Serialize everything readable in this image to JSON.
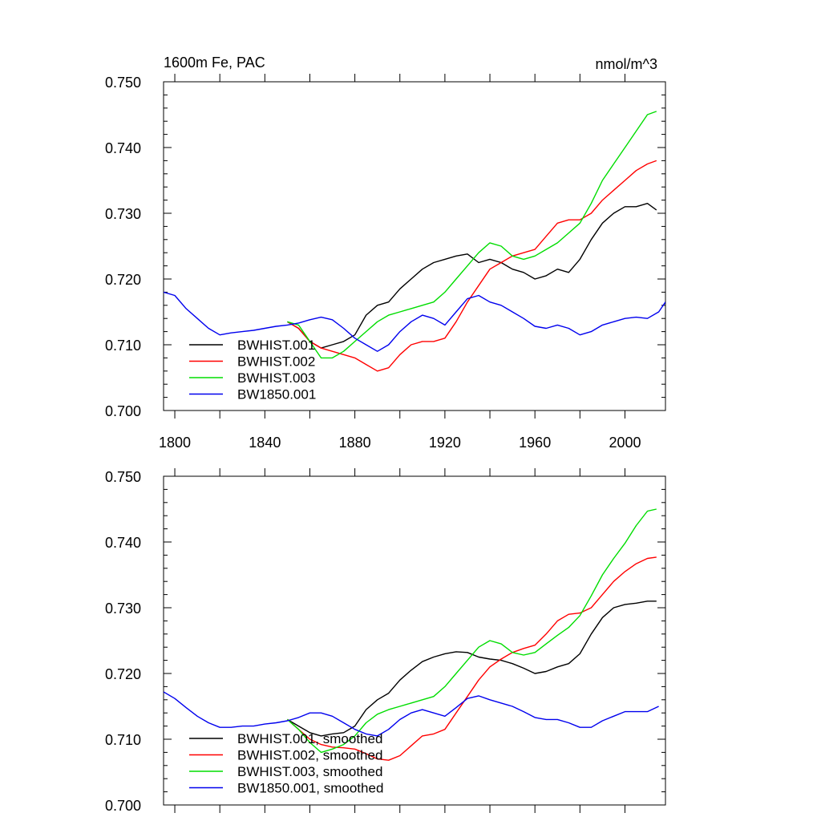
{
  "chart_data": [
    {
      "type": "line",
      "title_left": "1600m Fe, PAC",
      "title_right": "nmol/m^3",
      "ylim": [
        0.7,
        0.75
      ],
      "xlim": [
        1795,
        2018
      ],
      "yticks": [
        "0.700",
        "0.710",
        "0.720",
        "0.730",
        "0.740",
        "0.750"
      ],
      "ytick_values": [
        0.7,
        0.71,
        0.72,
        0.73,
        0.74,
        0.75
      ],
      "xticks": [
        "1800",
        "1840",
        "1880",
        "1920",
        "1960",
        "2000"
      ],
      "xtick_values": [
        1800,
        1840,
        1880,
        1920,
        1960,
        2000
      ],
      "legend_position": "bottom-left",
      "series": [
        {
          "name": "BWHIST.001",
          "color": "#000000",
          "x": [
            1850,
            1855,
            1860,
            1865,
            1870,
            1875,
            1880,
            1885,
            1890,
            1895,
            1900,
            1905,
            1910,
            1915,
            1920,
            1925,
            1930,
            1935,
            1940,
            1945,
            1950,
            1955,
            1960,
            1965,
            1970,
            1975,
            1980,
            1985,
            1990,
            1995,
            2000,
            2005,
            2010,
            2014
          ],
          "y": [
            0.7135,
            0.7125,
            0.7105,
            0.7095,
            0.71,
            0.7105,
            0.7115,
            0.7145,
            0.716,
            0.7165,
            0.7185,
            0.72,
            0.7215,
            0.7225,
            0.723,
            0.7235,
            0.7238,
            0.7225,
            0.723,
            0.7225,
            0.7215,
            0.721,
            0.72,
            0.7205,
            0.7215,
            0.721,
            0.723,
            0.726,
            0.7285,
            0.73,
            0.731,
            0.731,
            0.7315,
            0.7305
          ]
        },
        {
          "name": "BWHIST.002",
          "color": "#ff0000",
          "x": [
            1850,
            1855,
            1860,
            1865,
            1870,
            1875,
            1880,
            1885,
            1890,
            1895,
            1900,
            1905,
            1910,
            1915,
            1920,
            1925,
            1930,
            1935,
            1940,
            1945,
            1950,
            1955,
            1960,
            1965,
            1970,
            1975,
            1980,
            1985,
            1990,
            1995,
            2000,
            2005,
            2010,
            2014
          ],
          "y": [
            0.7135,
            0.7125,
            0.7105,
            0.7095,
            0.709,
            0.7085,
            0.708,
            0.707,
            0.706,
            0.7065,
            0.7085,
            0.71,
            0.7105,
            0.7105,
            0.711,
            0.7135,
            0.7165,
            0.719,
            0.7215,
            0.7225,
            0.7235,
            0.724,
            0.7245,
            0.7265,
            0.7285,
            0.729,
            0.729,
            0.73,
            0.732,
            0.7335,
            0.735,
            0.7365,
            0.7375,
            0.738
          ]
        },
        {
          "name": "BWHIST.003",
          "color": "#00dd00",
          "x": [
            1850,
            1855,
            1860,
            1865,
            1870,
            1875,
            1880,
            1885,
            1890,
            1895,
            1900,
            1905,
            1910,
            1915,
            1920,
            1925,
            1930,
            1935,
            1940,
            1945,
            1950,
            1955,
            1960,
            1965,
            1970,
            1975,
            1980,
            1985,
            1990,
            1995,
            2000,
            2005,
            2010,
            2014
          ],
          "y": [
            0.7135,
            0.713,
            0.7105,
            0.708,
            0.708,
            0.709,
            0.7105,
            0.712,
            0.7135,
            0.7145,
            0.715,
            0.7155,
            0.716,
            0.7165,
            0.718,
            0.72,
            0.722,
            0.724,
            0.7255,
            0.725,
            0.7235,
            0.723,
            0.7235,
            0.7245,
            0.7255,
            0.727,
            0.7285,
            0.7315,
            0.735,
            0.7375,
            0.74,
            0.7425,
            0.745,
            0.7455
          ]
        },
        {
          "name": "BW1850.001",
          "color": "#0000ee",
          "x": [
            1795,
            1800,
            1805,
            1810,
            1815,
            1820,
            1825,
            1830,
            1835,
            1840,
            1845,
            1850,
            1855,
            1860,
            1865,
            1870,
            1875,
            1880,
            1885,
            1890,
            1895,
            1900,
            1905,
            1910,
            1915,
            1920,
            1925,
            1930,
            1935,
            1940,
            1945,
            1950,
            1955,
            1960,
            1965,
            1970,
            1975,
            1980,
            1985,
            1990,
            1995,
            2000,
            2005,
            2010,
            2015,
            2018
          ],
          "y": [
            0.718,
            0.7175,
            0.7155,
            0.714,
            0.7125,
            0.7115,
            0.7118,
            0.712,
            0.7122,
            0.7125,
            0.7128,
            0.713,
            0.7133,
            0.7138,
            0.7142,
            0.7138,
            0.7125,
            0.711,
            0.71,
            0.709,
            0.71,
            0.712,
            0.7135,
            0.7145,
            0.714,
            0.713,
            0.715,
            0.717,
            0.7175,
            0.7165,
            0.716,
            0.715,
            0.714,
            0.7128,
            0.7125,
            0.713,
            0.7125,
            0.7115,
            0.712,
            0.713,
            0.7135,
            0.714,
            0.7142,
            0.714,
            0.715,
            0.7165
          ]
        }
      ]
    },
    {
      "type": "line",
      "ylim": [
        0.7,
        0.75
      ],
      "xlim": [
        1795,
        2018
      ],
      "yticks": [
        "0.700",
        "0.710",
        "0.720",
        "0.730",
        "0.740",
        "0.750"
      ],
      "ytick_values": [
        0.7,
        0.71,
        0.72,
        0.73,
        0.74,
        0.75
      ],
      "legend_position": "bottom-left",
      "series": [
        {
          "name": "BWHIST.001, smoothed",
          "color": "#000000",
          "x": [
            1850,
            1855,
            1860,
            1865,
            1870,
            1875,
            1880,
            1885,
            1890,
            1895,
            1900,
            1905,
            1910,
            1915,
            1920,
            1925,
            1930,
            1935,
            1940,
            1945,
            1950,
            1955,
            1960,
            1965,
            1970,
            1975,
            1980,
            1985,
            1990,
            1995,
            2000,
            2005,
            2010,
            2014
          ],
          "y": [
            0.713,
            0.712,
            0.711,
            0.7105,
            0.7108,
            0.711,
            0.712,
            0.7145,
            0.716,
            0.717,
            0.719,
            0.7205,
            0.7218,
            0.7225,
            0.723,
            0.7233,
            0.7232,
            0.7225,
            0.7222,
            0.722,
            0.7215,
            0.7208,
            0.72,
            0.7203,
            0.721,
            0.7215,
            0.723,
            0.726,
            0.7285,
            0.73,
            0.7305,
            0.7307,
            0.731,
            0.731
          ]
        },
        {
          "name": "BWHIST.002, smoothed",
          "color": "#ff0000",
          "x": [
            1850,
            1855,
            1860,
            1865,
            1870,
            1875,
            1880,
            1885,
            1890,
            1895,
            1900,
            1905,
            1910,
            1915,
            1920,
            1925,
            1930,
            1935,
            1940,
            1945,
            1950,
            1955,
            1960,
            1965,
            1970,
            1975,
            1980,
            1985,
            1990,
            1995,
            2000,
            2005,
            2010,
            2014
          ],
          "y": [
            0.713,
            0.7115,
            0.71,
            0.7092,
            0.7088,
            0.7087,
            0.7085,
            0.7078,
            0.707,
            0.7068,
            0.7075,
            0.709,
            0.7105,
            0.7108,
            0.7115,
            0.714,
            0.7165,
            0.719,
            0.721,
            0.7222,
            0.7232,
            0.7238,
            0.7243,
            0.726,
            0.728,
            0.729,
            0.7292,
            0.73,
            0.732,
            0.734,
            0.7355,
            0.7367,
            0.7375,
            0.7377
          ]
        },
        {
          "name": "BWHIST.003, smoothed",
          "color": "#00dd00",
          "x": [
            1850,
            1855,
            1860,
            1865,
            1870,
            1875,
            1880,
            1885,
            1890,
            1895,
            1900,
            1905,
            1910,
            1915,
            1920,
            1925,
            1930,
            1935,
            1940,
            1945,
            1950,
            1955,
            1960,
            1965,
            1970,
            1975,
            1980,
            1985,
            1990,
            1995,
            2000,
            2005,
            2010,
            2014
          ],
          "y": [
            0.713,
            0.7115,
            0.7095,
            0.708,
            0.7085,
            0.7092,
            0.7105,
            0.7125,
            0.7138,
            0.7145,
            0.715,
            0.7155,
            0.716,
            0.7165,
            0.718,
            0.72,
            0.722,
            0.724,
            0.725,
            0.7245,
            0.7232,
            0.7228,
            0.7232,
            0.7245,
            0.7258,
            0.727,
            0.7288,
            0.7318,
            0.735,
            0.7375,
            0.7398,
            0.7425,
            0.7447,
            0.745
          ]
        },
        {
          "name": "BW1850.001, smoothed",
          "color": "#0000ee",
          "x": [
            1795,
            1800,
            1805,
            1810,
            1815,
            1820,
            1825,
            1830,
            1835,
            1840,
            1845,
            1850,
            1855,
            1860,
            1865,
            1870,
            1875,
            1880,
            1885,
            1890,
            1895,
            1900,
            1905,
            1910,
            1915,
            1920,
            1925,
            1930,
            1935,
            1940,
            1945,
            1950,
            1955,
            1960,
            1965,
            1970,
            1975,
            1980,
            1985,
            1990,
            1995,
            2000,
            2005,
            2010,
            2015
          ],
          "y": [
            0.7172,
            0.7162,
            0.7148,
            0.7135,
            0.7125,
            0.7118,
            0.7118,
            0.712,
            0.712,
            0.7123,
            0.7125,
            0.7128,
            0.7133,
            0.714,
            0.714,
            0.7135,
            0.7125,
            0.7115,
            0.7108,
            0.7105,
            0.7115,
            0.713,
            0.714,
            0.7145,
            0.714,
            0.7135,
            0.7148,
            0.7162,
            0.7166,
            0.716,
            0.7155,
            0.715,
            0.7142,
            0.7133,
            0.713,
            0.713,
            0.7125,
            0.7118,
            0.7118,
            0.7128,
            0.7135,
            0.7142,
            0.7142,
            0.7142,
            0.715
          ]
        }
      ]
    }
  ]
}
